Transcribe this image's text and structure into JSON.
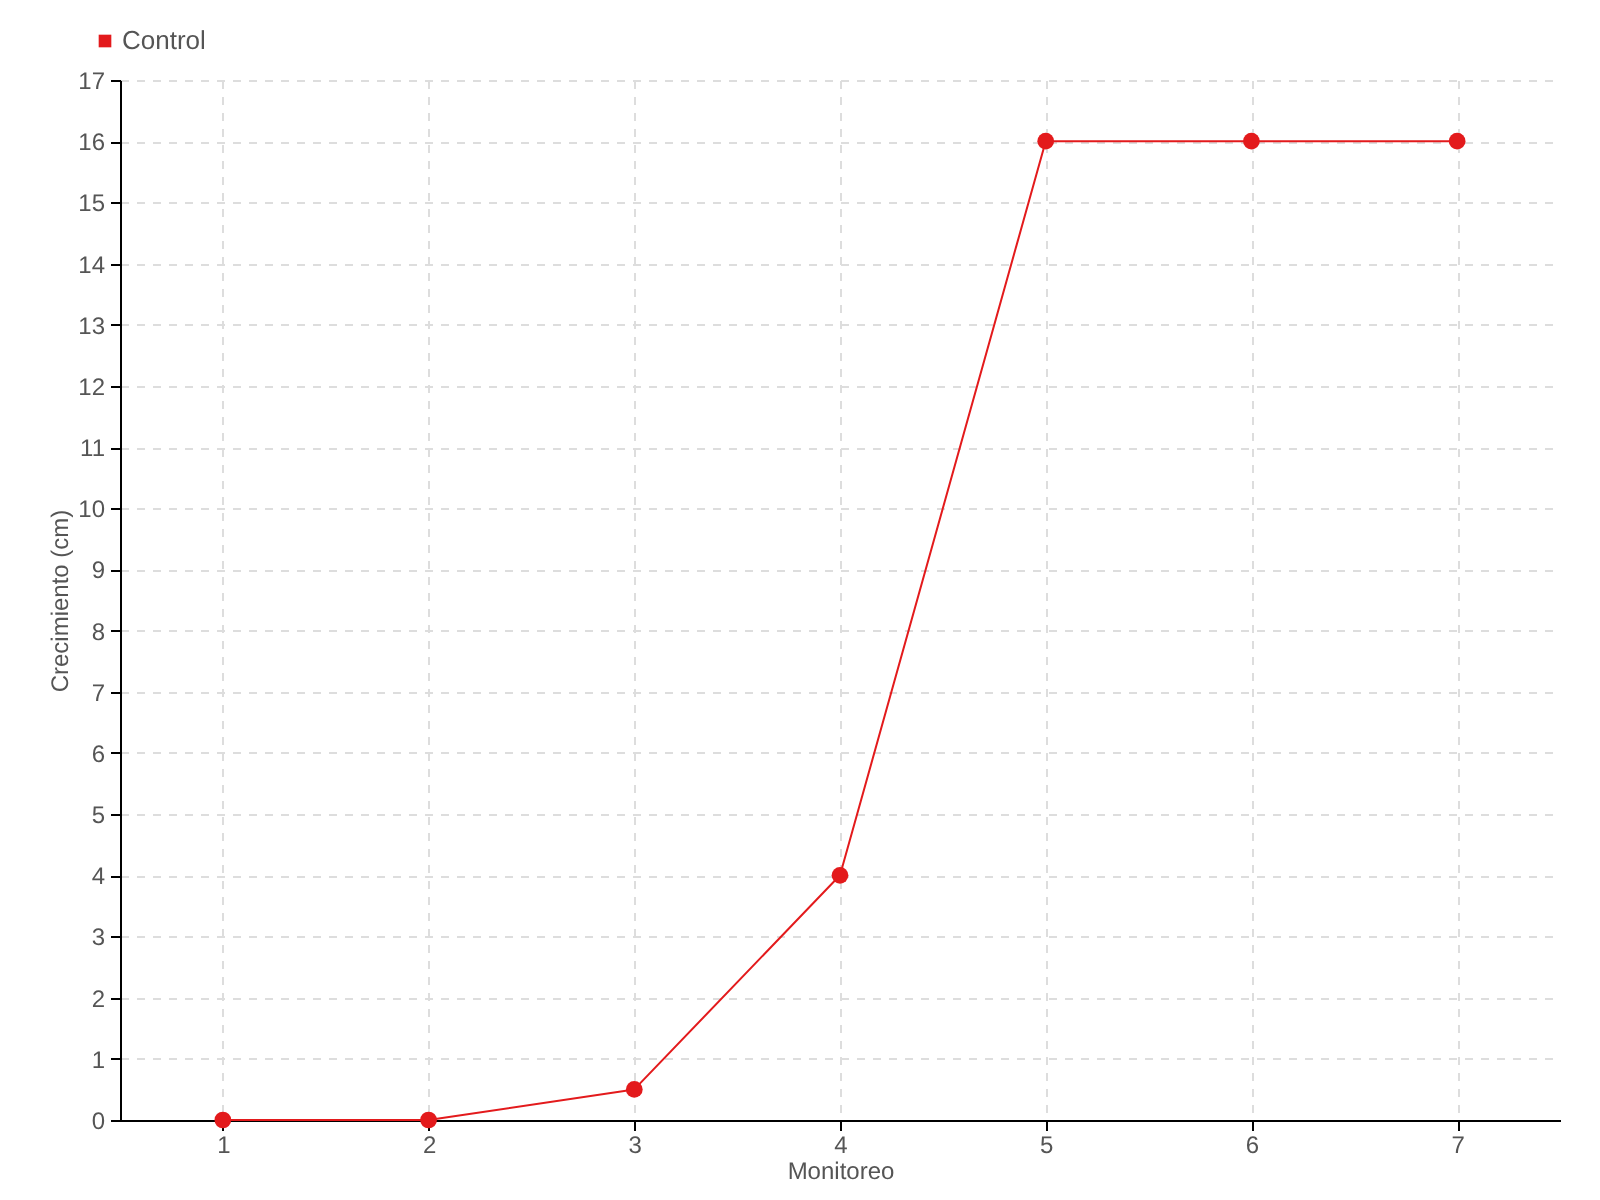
{
  "chart_data": {
    "type": "line",
    "xlabel": "Monitoreo",
    "ylabel": "Crecimiento (cm)",
    "categories": [
      "1",
      "2",
      "3",
      "4",
      "5",
      "6",
      "7"
    ],
    "series": [
      {
        "name": "Control",
        "color": "#e31a1c",
        "values": [
          0,
          0,
          0.5,
          4,
          16,
          16,
          16
        ]
      }
    ],
    "ylim": [
      0,
      17
    ],
    "yticks": [
      0,
      1,
      2,
      3,
      4,
      5,
      6,
      7,
      8,
      9,
      10,
      11,
      12,
      13,
      14,
      15,
      16,
      17
    ],
    "grid": true,
    "legend": "top left",
    "marker": "circle",
    "line_style": "solid"
  }
}
